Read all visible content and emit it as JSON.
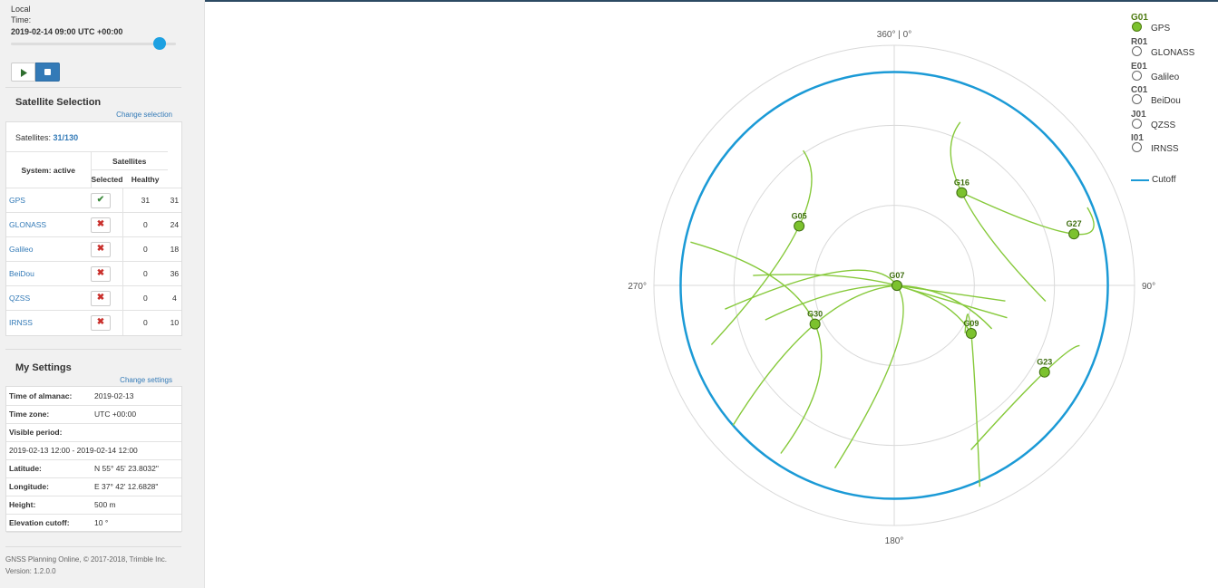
{
  "header": {
    "time_label": "Local\nTime:",
    "time_value": "2019-02-14 09:00 UTC +00:00",
    "slider_position": 0.9
  },
  "satellite_selection": {
    "title": "Satellite Selection",
    "change_link": "Change selection",
    "count_label": "Satellites:",
    "count_value": "31/130",
    "col_system": "System: active",
    "col_group": "Satellites",
    "col_selected": "Selected",
    "col_healthy": "Healthy",
    "rows": [
      {
        "name": "GPS",
        "active": true,
        "mark": "✔",
        "selected": "31",
        "healthy": "31"
      },
      {
        "name": "GLONASS",
        "active": false,
        "mark": "✖",
        "selected": "0",
        "healthy": "24"
      },
      {
        "name": "Galileo",
        "active": false,
        "mark": "✖",
        "selected": "0",
        "healthy": "18"
      },
      {
        "name": "BeiDou",
        "active": false,
        "mark": "✖",
        "selected": "0",
        "healthy": "36"
      },
      {
        "name": "QZSS",
        "active": false,
        "mark": "✖",
        "selected": "0",
        "healthy": "4"
      },
      {
        "name": "IRNSS",
        "active": false,
        "mark": "✖",
        "selected": "0",
        "healthy": "10"
      }
    ]
  },
  "my_settings": {
    "title": "My Settings",
    "change_link": "Change settings",
    "rows": [
      {
        "key": "Time of almanac:",
        "value": "2019-02-13"
      },
      {
        "key": "Time zone:",
        "value": "UTC +00:00"
      },
      {
        "key": "Visible period:",
        "value": ""
      },
      {
        "key": "",
        "value": "2019-02-13 12:00 - 2019-02-14 12:00"
      },
      {
        "key": "Latitude:",
        "value": "N 55° 45' 23.8032\""
      },
      {
        "key": "Longitude:",
        "value": "E 37° 42' 12.6828\""
      },
      {
        "key": "Height:",
        "value": "500 m"
      },
      {
        "key": "Elevation cutoff:",
        "value": "10 °"
      }
    ]
  },
  "footer": {
    "line1": "GNSS Planning Online, © 2017-2018, Trimble Inc.",
    "line2": "Version: 1.2.0.0"
  },
  "skyplot": {
    "azimuth_labels": {
      "north": "360° | 0°",
      "east": "90°",
      "south": "180°",
      "west": "270°"
    },
    "cutoff_elevation": 10,
    "colors": {
      "gps": "#7cc22e",
      "track": "#86c93a",
      "cutoff": "#1b9ad6",
      "grid": "#d9d9d9"
    },
    "satellites": [
      {
        "id": "G05",
        "az": 302,
        "el": 48
      },
      {
        "id": "G16",
        "az": 36,
        "el": 47
      },
      {
        "id": "G27",
        "az": 74,
        "el": 20
      },
      {
        "id": "G07",
        "az": 92,
        "el": 89
      },
      {
        "id": "G09",
        "az": 122,
        "el": 56
      },
      {
        "id": "G23",
        "az": 120,
        "el": 25
      },
      {
        "id": "G30",
        "az": 244,
        "el": 57
      }
    ]
  },
  "legend": {
    "items": [
      {
        "tag": "G01",
        "name": "GPS",
        "active": true
      },
      {
        "tag": "R01",
        "name": "GLONASS",
        "active": false
      },
      {
        "tag": "E01",
        "name": "Galileo",
        "active": false
      },
      {
        "tag": "C01",
        "name": "BeiDou",
        "active": false
      },
      {
        "tag": "J01",
        "name": "QZSS",
        "active": false
      },
      {
        "tag": "I01",
        "name": "IRNSS",
        "active": false
      }
    ],
    "cutoff_label": "Cutoff"
  }
}
